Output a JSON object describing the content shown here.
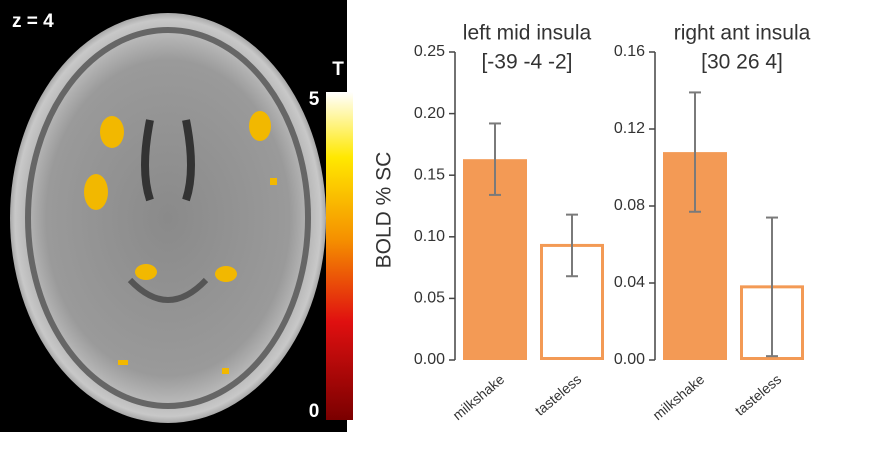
{
  "image": {
    "label": "z = 4",
    "colorbar": {
      "title": "T",
      "lim": [
        0,
        5
      ],
      "ticks": [
        0,
        5
      ]
    }
  },
  "chart_data": [
    {
      "type": "bar",
      "title": "left mid insula",
      "subtitle": "[-39 -4 -2]",
      "ylabel": "BOLD % SC",
      "categories": [
        "milkshake",
        "tasteless"
      ],
      "values": [
        0.163,
        0.093
      ],
      "errors": [
        0.029,
        0.025
      ],
      "color": "#f39a55",
      "bar_styles": [
        "filled",
        "outline"
      ],
      "ylim": [
        0,
        0.25
      ],
      "yticks": [
        {
          "value": 0,
          "label": "0.00"
        },
        0.05,
        {
          "value": 0.1,
          "label": "0.10"
        },
        0.15,
        {
          "value": 0.2,
          "label": "0.20"
        },
        0.25
      ]
    },
    {
      "type": "bar",
      "title": "right ant insula",
      "subtitle": "[30 26 4]",
      "categories": [
        "milkshake",
        "tasteless"
      ],
      "values": [
        0.108,
        0.038
      ],
      "errors": [
        0.031,
        0.036
      ],
      "color": "#f39a55",
      "bar_styles": [
        "filled",
        "outline"
      ],
      "ylim": [
        0,
        0.16
      ],
      "yticks": [
        {
          "value": 0,
          "label": "0.00"
        },
        0.04,
        0.08,
        0.12,
        0.16
      ]
    }
  ]
}
